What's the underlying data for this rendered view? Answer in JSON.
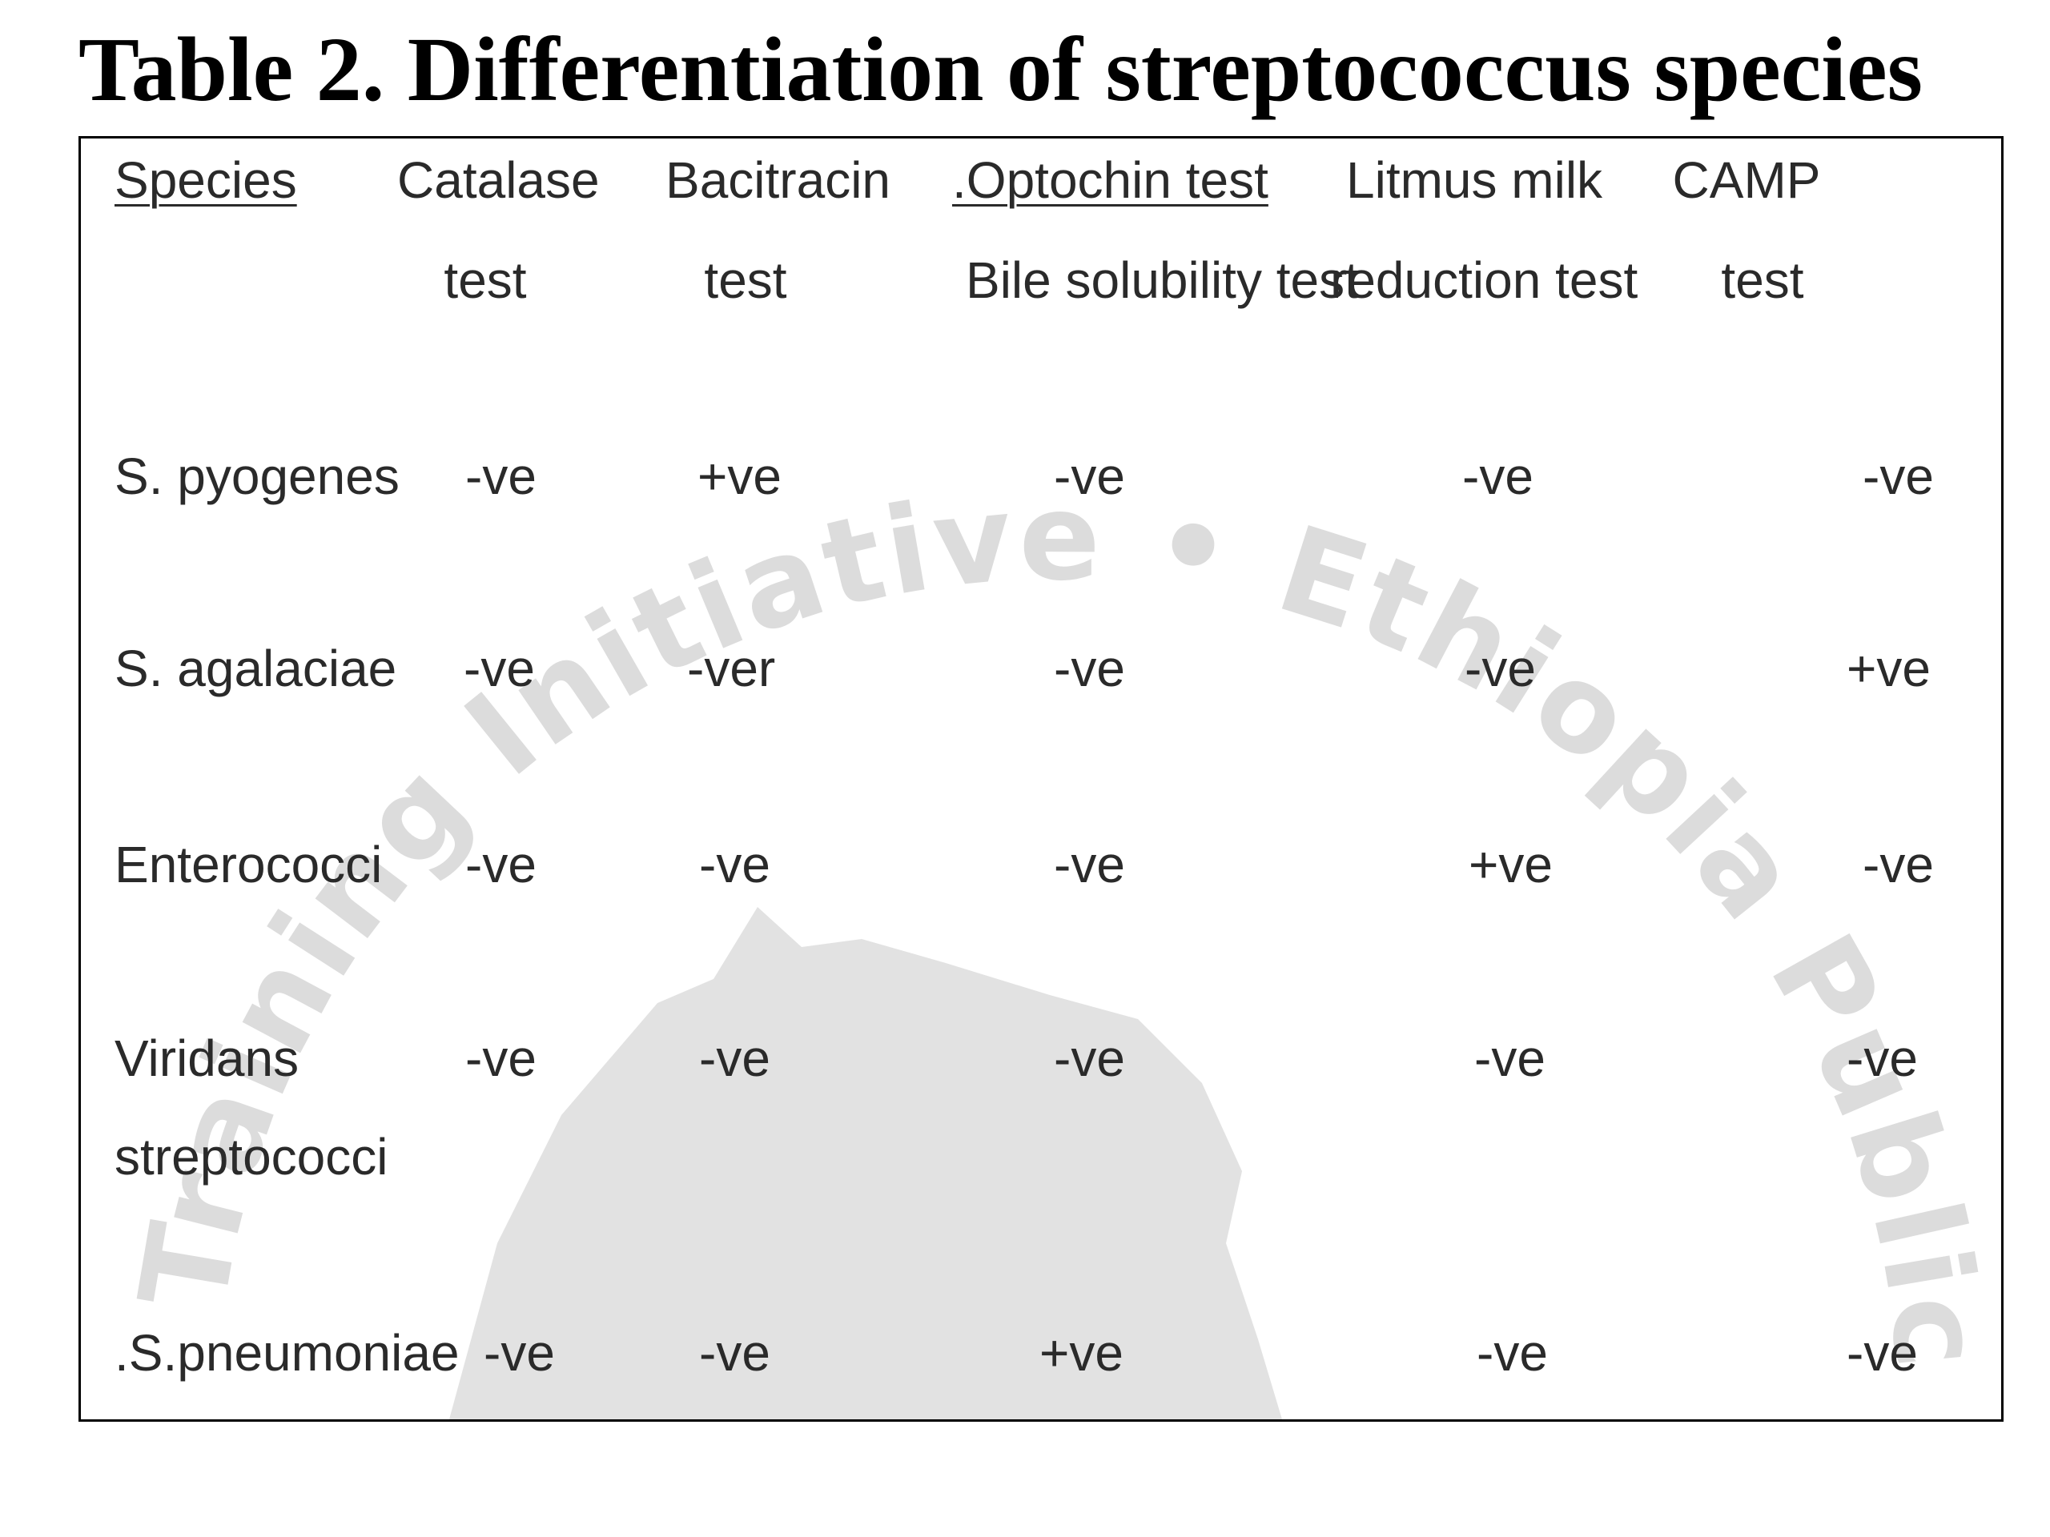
{
  "title": "Table 2. Differentiation of streptococcus species",
  "watermark": {
    "text": "Training Initiative • Ethiopia Public He",
    "color": "#dcdcdc"
  },
  "table": {
    "headers": {
      "species": "Species",
      "catalase": [
        "Catalase",
        "test"
      ],
      "bacitracin": [
        "Bacitracin",
        "test"
      ],
      "optochin": [
        ".Optochin test",
        "Bile solubility test"
      ],
      "litmus": [
        "Litmus milk",
        "reduction test"
      ],
      "camp": [
        "CAMP",
        "test"
      ]
    },
    "rows": [
      {
        "species": [
          "S. pyogenes"
        ],
        "catalase": "-ve",
        "bacitracin": "+ve",
        "optochin": "-ve",
        "litmus": "-ve",
        "camp": "-ve"
      },
      {
        "species": [
          "S. agalaciae"
        ],
        "catalase": "-ve",
        "bacitracin": "-ver",
        "optochin": "-ve",
        "litmus": "-ve",
        "camp": "+ve"
      },
      {
        "species": [
          "Enterococci"
        ],
        "catalase": "-ve",
        "bacitracin": "-ve",
        "optochin": "-ve",
        "litmus": "+ve",
        "camp": "-ve"
      },
      {
        "species": [
          "Viridans",
          "streptococci"
        ],
        "catalase": "-ve",
        "bacitracin": "-ve",
        "optochin": "-ve",
        "litmus": "-ve",
        "camp": "-ve"
      },
      {
        "species": [
          ".S.pneumoniae"
        ],
        "catalase": "-ve",
        "bacitracin": "-ve",
        "optochin": "+ve",
        "litmus": "-ve",
        "camp": "-ve"
      }
    ]
  }
}
